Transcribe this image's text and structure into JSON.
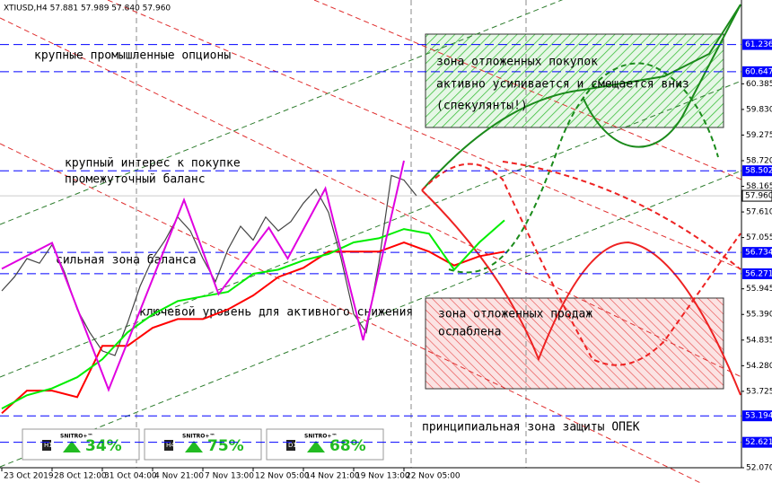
{
  "chart_data": {
    "type": "line",
    "title": "XTIUSD,H4 57.881 57.989 57.840 57.960",
    "xlim": [
      -0.57,
      235.43
    ],
    "ylim": [
      52.07,
      62.2
    ],
    "xticks": [
      {
        "value": 0,
        "label": "23 Oct 2019"
      },
      {
        "value": 16,
        "label": "28 Oct 12:00"
      },
      {
        "value": 32,
        "label": "31 Oct 04:00"
      },
      {
        "value": 48,
        "label": "4 Nov 21:00"
      },
      {
        "value": 64,
        "label": "7 Nov 13:00"
      },
      {
        "value": 80,
        "label": "12 Nov 05:00"
      },
      {
        "value": 96,
        "label": "14 Nov 21:00"
      },
      {
        "value": 112,
        "label": "19 Nov 13:00"
      },
      {
        "value": 128,
        "label": "22 Nov 05:00"
      }
    ],
    "yticks": [
      60.385,
      {
        "value": 59.83,
        "label": "59.830"
      },
      59.275,
      {
        "value": 58.72,
        "label": "58.720"
      },
      58.165,
      {
        "value": 57.61,
        "label": "57.610"
      },
      57.055,
      55.945,
      {
        "value": 55.39,
        "label": "55.390"
      },
      54.835,
      {
        "value": 54.28,
        "label": "54.280"
      },
      53.725,
      {
        "value": 52.07,
        "label": "52.070"
      }
    ],
    "levels": [
      61.236,
      60.647,
      58.502,
      56.734,
      56.271,
      53.194,
      52.621
    ],
    "level_color": "#0000ff",
    "current_price": {
      "value": 57.96,
      "label": "57.960"
    },
    "series": [
      {
        "color": "#444444",
        "x": [
          0,
          4,
          8,
          12,
          16,
          20,
          24,
          28,
          32,
          36,
          40,
          44,
          48,
          52,
          56,
          60,
          64,
          68,
          72,
          76,
          80,
          84,
          88,
          92,
          96,
          100,
          104,
          108,
          112,
          116,
          120,
          124,
          128,
          132
        ],
        "values": [
          55.9,
          56.2,
          56.6,
          56.5,
          56.9,
          56.3,
          55.5,
          55.0,
          54.6,
          54.5,
          55.2,
          56.0,
          56.6,
          57.0,
          57.5,
          57.2,
          56.6,
          56.1,
          56.8,
          57.3,
          57.0,
          57.5,
          57.2,
          57.4,
          57.8,
          58.1,
          57.6,
          56.6,
          55.4,
          55.0,
          56.5,
          58.4,
          58.3,
          57.96
        ]
      },
      {
        "color": "#ff0000",
        "x": [
          0,
          8,
          16,
          24,
          32,
          40,
          48,
          56,
          64,
          72,
          80,
          88,
          96,
          104,
          112,
          120,
          128,
          136,
          144,
          152,
          160
        ],
        "values": [
          53.25,
          53.74,
          53.74,
          53.6,
          54.71,
          54.71,
          55.1,
          55.29,
          55.29,
          55.5,
          55.8,
          56.2,
          56.4,
          56.75,
          56.75,
          56.75,
          56.95,
          56.75,
          56.45,
          56.65,
          56.75
        ]
      },
      {
        "color": "#00ee00",
        "x": [
          0,
          8,
          16,
          24,
          32,
          40,
          48,
          56,
          64,
          72,
          80,
          88,
          96,
          104,
          112,
          120,
          128,
          136,
          144,
          152,
          160
        ],
        "values": [
          53.35,
          53.64,
          53.79,
          54.03,
          54.42,
          55.0,
          55.39,
          55.68,
          55.78,
          55.88,
          56.27,
          56.36,
          56.56,
          56.7,
          56.95,
          57.04,
          57.24,
          57.14,
          56.36,
          56.95,
          57.43
        ]
      },
      {
        "color": "#e000e0",
        "x": [
          0,
          16,
          34,
          58,
          69,
          85,
          91,
          103,
          115,
          128
        ],
        "values": [
          56.38,
          56.94,
          53.76,
          57.87,
          55.83,
          57.27,
          56.6,
          58.12,
          54.83,
          58.72
        ]
      }
    ],
    "annotations": [
      "крупные промышленные опционы",
      "крупный интерес к покупке",
      "промежуточный баланс",
      "сильная зона баланса",
      "ключевой уровень для активного снижения",
      "зона отложенных покупок",
      "активно усиливается и смещается вниз",
      "(спекулянты!)",
      "зона отложенных продаж",
      "ослаблена",
      "принципиальная зона защиты ОПЕК"
    ],
    "panels": [
      {
        "timeframe": "H1",
        "brand": "SNITRO+™",
        "value_label": "34%"
      },
      {
        "timeframe": "H4",
        "brand": "SNITRO+™",
        "value_label": "75%"
      },
      {
        "timeframe": "D1",
        "brand": "SNITRO+™",
        "value_label": "68%"
      }
    ]
  }
}
